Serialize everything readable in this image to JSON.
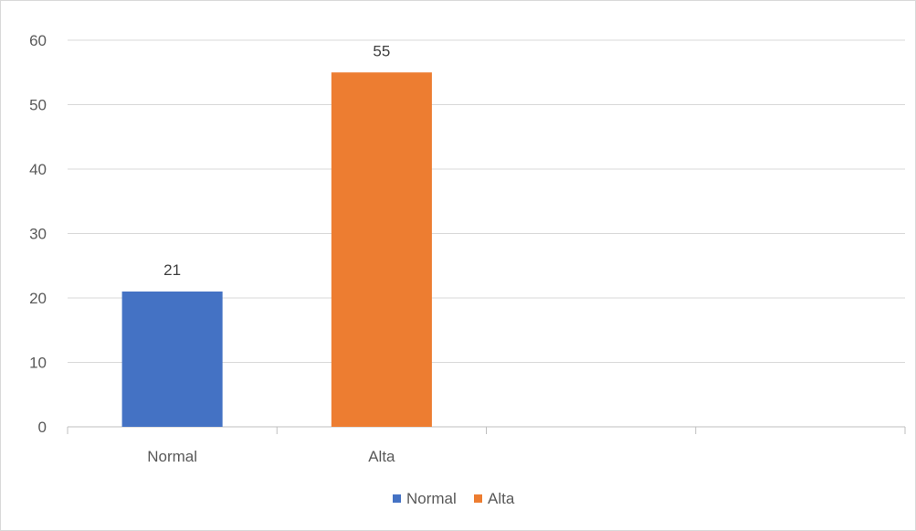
{
  "chart_data": {
    "type": "bar",
    "categories": [
      "Normal",
      "Alta",
      "",
      ""
    ],
    "series": [
      {
        "name": "Normal",
        "values": [
          21,
          null,
          null,
          null
        ],
        "color": "#4472C4"
      },
      {
        "name": "Alta",
        "values": [
          null,
          55,
          null,
          null
        ],
        "color": "#ED7D31"
      }
    ],
    "title": "",
    "xlabel": "",
    "ylabel": "",
    "ylim": [
      0,
      60
    ],
    "yticks": [
      "0",
      "10",
      "20",
      "30",
      "40",
      "50",
      "60"
    ],
    "data_labels": [
      "21",
      "55"
    ],
    "grid": true,
    "legend": "bottom",
    "legend_entries": [
      "Normal",
      "Alta"
    ],
    "gridline_color": "#d9d9d9",
    "axis_color": "#bfbfbf"
  }
}
